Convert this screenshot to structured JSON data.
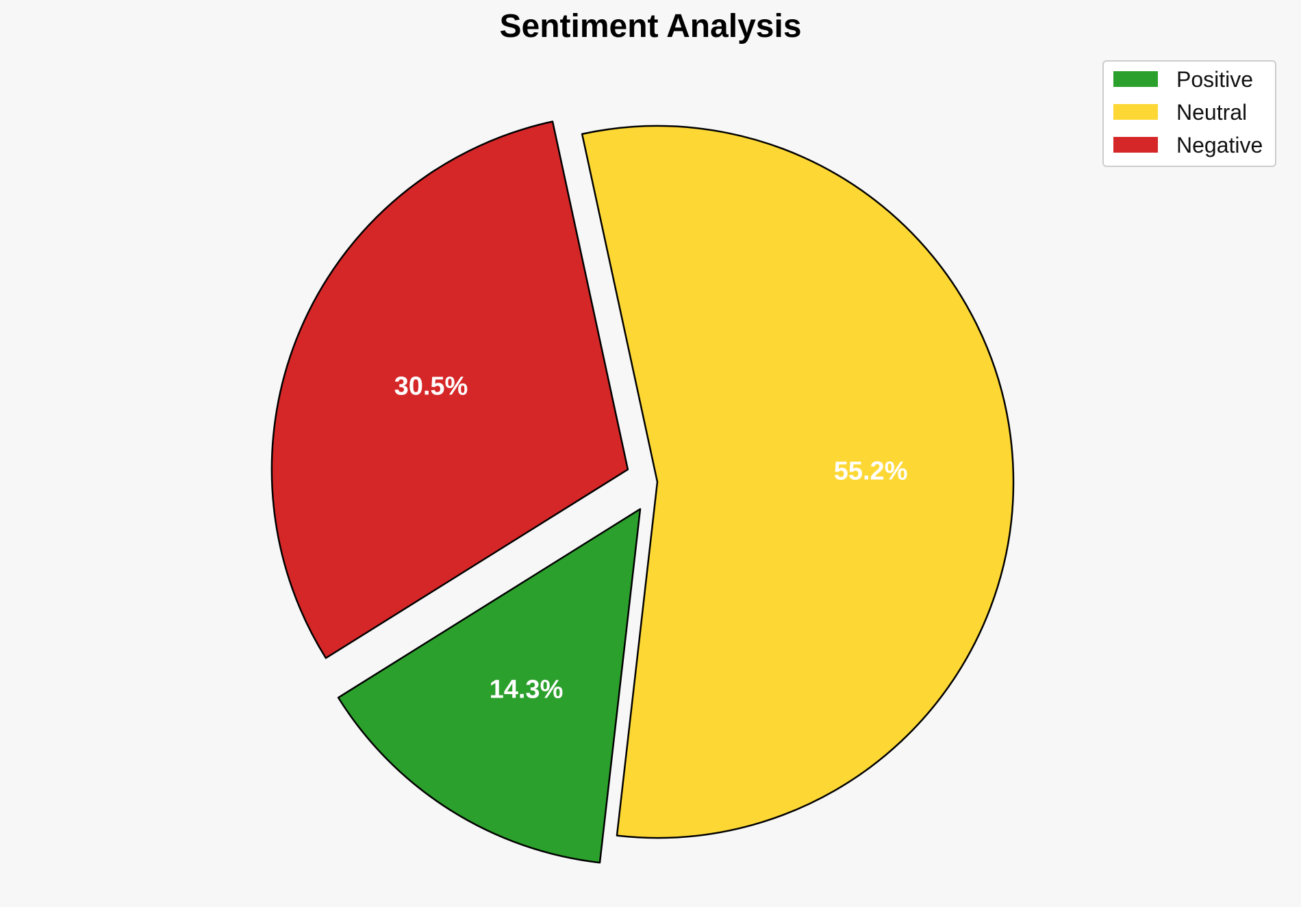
{
  "chart_data": {
    "type": "pie",
    "title": "Sentiment Analysis",
    "categories": [
      "Positive",
      "Neutral",
      "Negative"
    ],
    "values": [
      14.3,
      55.2,
      30.5
    ],
    "value_labels": [
      "14.3%",
      "55.2%",
      "30.5%"
    ],
    "colors": [
      "#2ca02c",
      "#fdd835",
      "#d62728"
    ],
    "edge_color": "#000000",
    "exploded": true,
    "legend_position": "top-right",
    "label_color": "#ffffff"
  }
}
